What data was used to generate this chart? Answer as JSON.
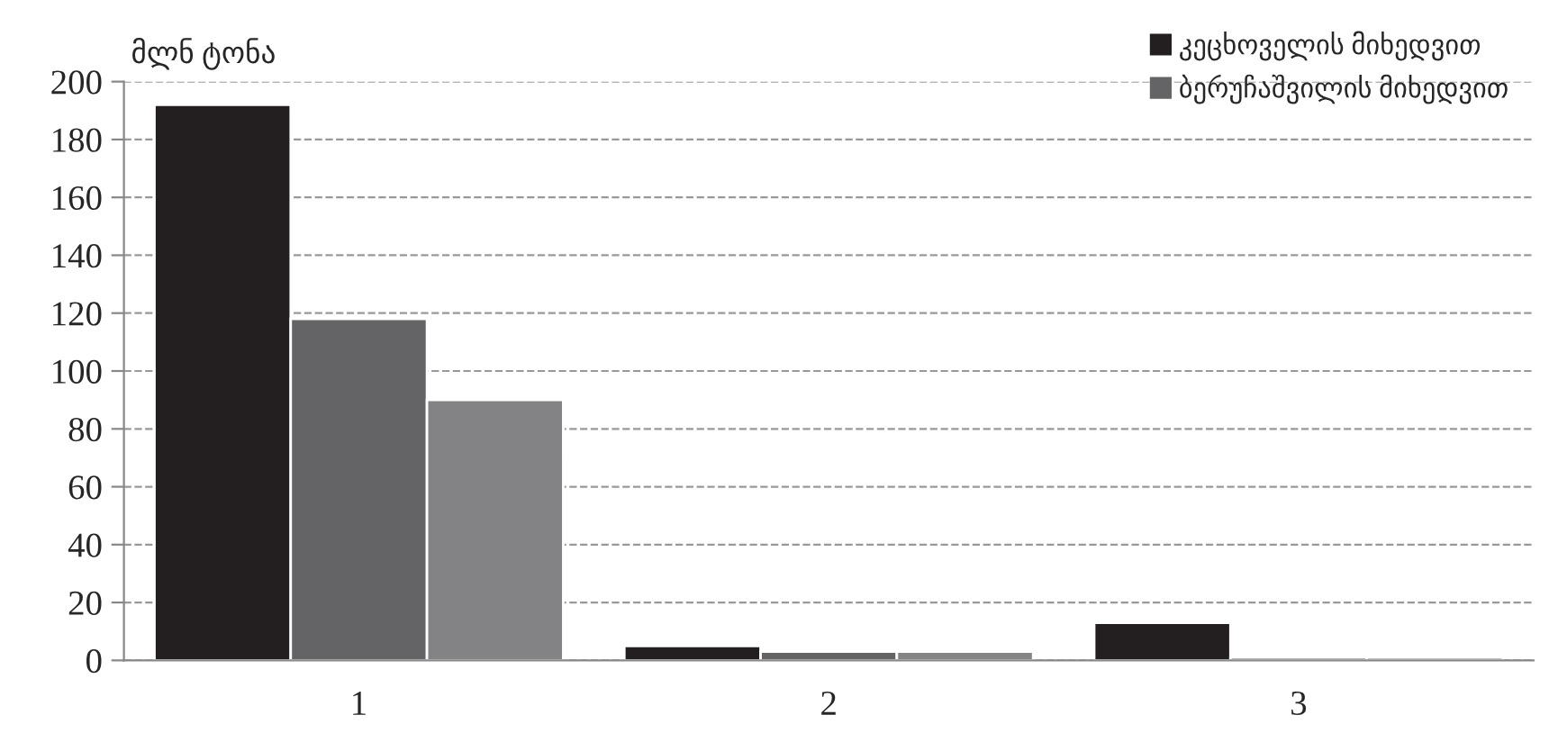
{
  "chart_data": {
    "type": "bar",
    "ylabel": "მლნ ტონა",
    "categories": [
      "1",
      "2",
      "3"
    ],
    "series": [
      {
        "name": "კეცხოველის მიხედვით",
        "color": "#231f20",
        "values": [
          192,
          5,
          13
        ]
      },
      {
        "name": "ბერუჩაშვილის მიხედვით",
        "color": "#646466",
        "values": [
          118,
          3,
          1
        ]
      },
      {
        "color": "#838386",
        "values": [
          90,
          3,
          1
        ]
      }
    ],
    "ylim": [
      0,
      200
    ],
    "yticks": [
      0,
      20,
      40,
      60,
      80,
      100,
      120,
      140,
      160,
      180,
      200
    ],
    "grid": "y",
    "legend": "top right"
  }
}
